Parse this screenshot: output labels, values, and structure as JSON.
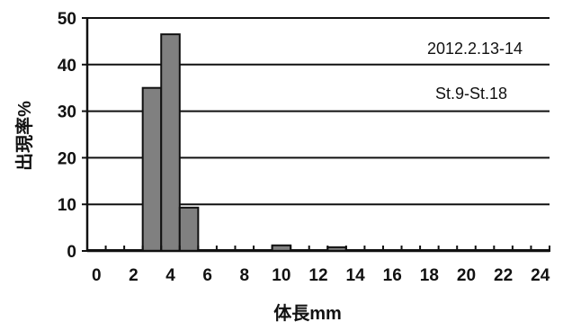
{
  "chart_data": {
    "type": "bar",
    "title": "",
    "xlabel": "体長mm",
    "ylabel": "出現率%",
    "xlim": [
      0,
      25
    ],
    "ylim": [
      0,
      50
    ],
    "x_ticks": [
      "0",
      "2",
      "4",
      "6",
      "8",
      "10",
      "12",
      "14",
      "16",
      "18",
      "20",
      "22",
      "24"
    ],
    "y_ticks": [
      "0",
      "10",
      "20",
      "30",
      "40",
      "50"
    ],
    "grid": "horizontal",
    "bin_width_mm": 1,
    "series": [
      {
        "bins": [
          {
            "x": 0,
            "value": 0.2
          },
          {
            "x": 1,
            "value": 0.2
          },
          {
            "x": 2,
            "value": 0.2
          },
          {
            "x": 3,
            "value": 35
          },
          {
            "x": 4,
            "value": 46.5
          },
          {
            "x": 5,
            "value": 9.3
          },
          {
            "x": 6,
            "value": 0.2
          },
          {
            "x": 7,
            "value": 0.2
          },
          {
            "x": 8,
            "value": 0.2
          },
          {
            "x": 9,
            "value": 0.2
          },
          {
            "x": 10,
            "value": 1.2
          },
          {
            "x": 11,
            "value": 0.2
          },
          {
            "x": 12,
            "value": 0.2
          },
          {
            "x": 13,
            "value": 0.8
          },
          {
            "x": 14,
            "value": 0.2
          },
          {
            "x": 15,
            "value": 0.2
          },
          {
            "x": 16,
            "value": 0.2
          },
          {
            "x": 17,
            "value": 0.2
          },
          {
            "x": 18,
            "value": 0.2
          },
          {
            "x": 19,
            "value": 0.2
          },
          {
            "x": 20,
            "value": 0.2
          },
          {
            "x": 21,
            "value": 0.2
          },
          {
            "x": 22,
            "value": 0.2
          },
          {
            "x": 23,
            "value": 0.2
          },
          {
            "x": 24,
            "value": 0.2
          }
        ]
      }
    ],
    "annotations": [
      "2012.2.13-14",
      "St.9-St.18"
    ],
    "colors": {
      "bar_fill": "#808080",
      "bar_stroke": "#111111",
      "axis": "#111111",
      "grid": "#111111",
      "plot_background": "#ffffff"
    }
  }
}
